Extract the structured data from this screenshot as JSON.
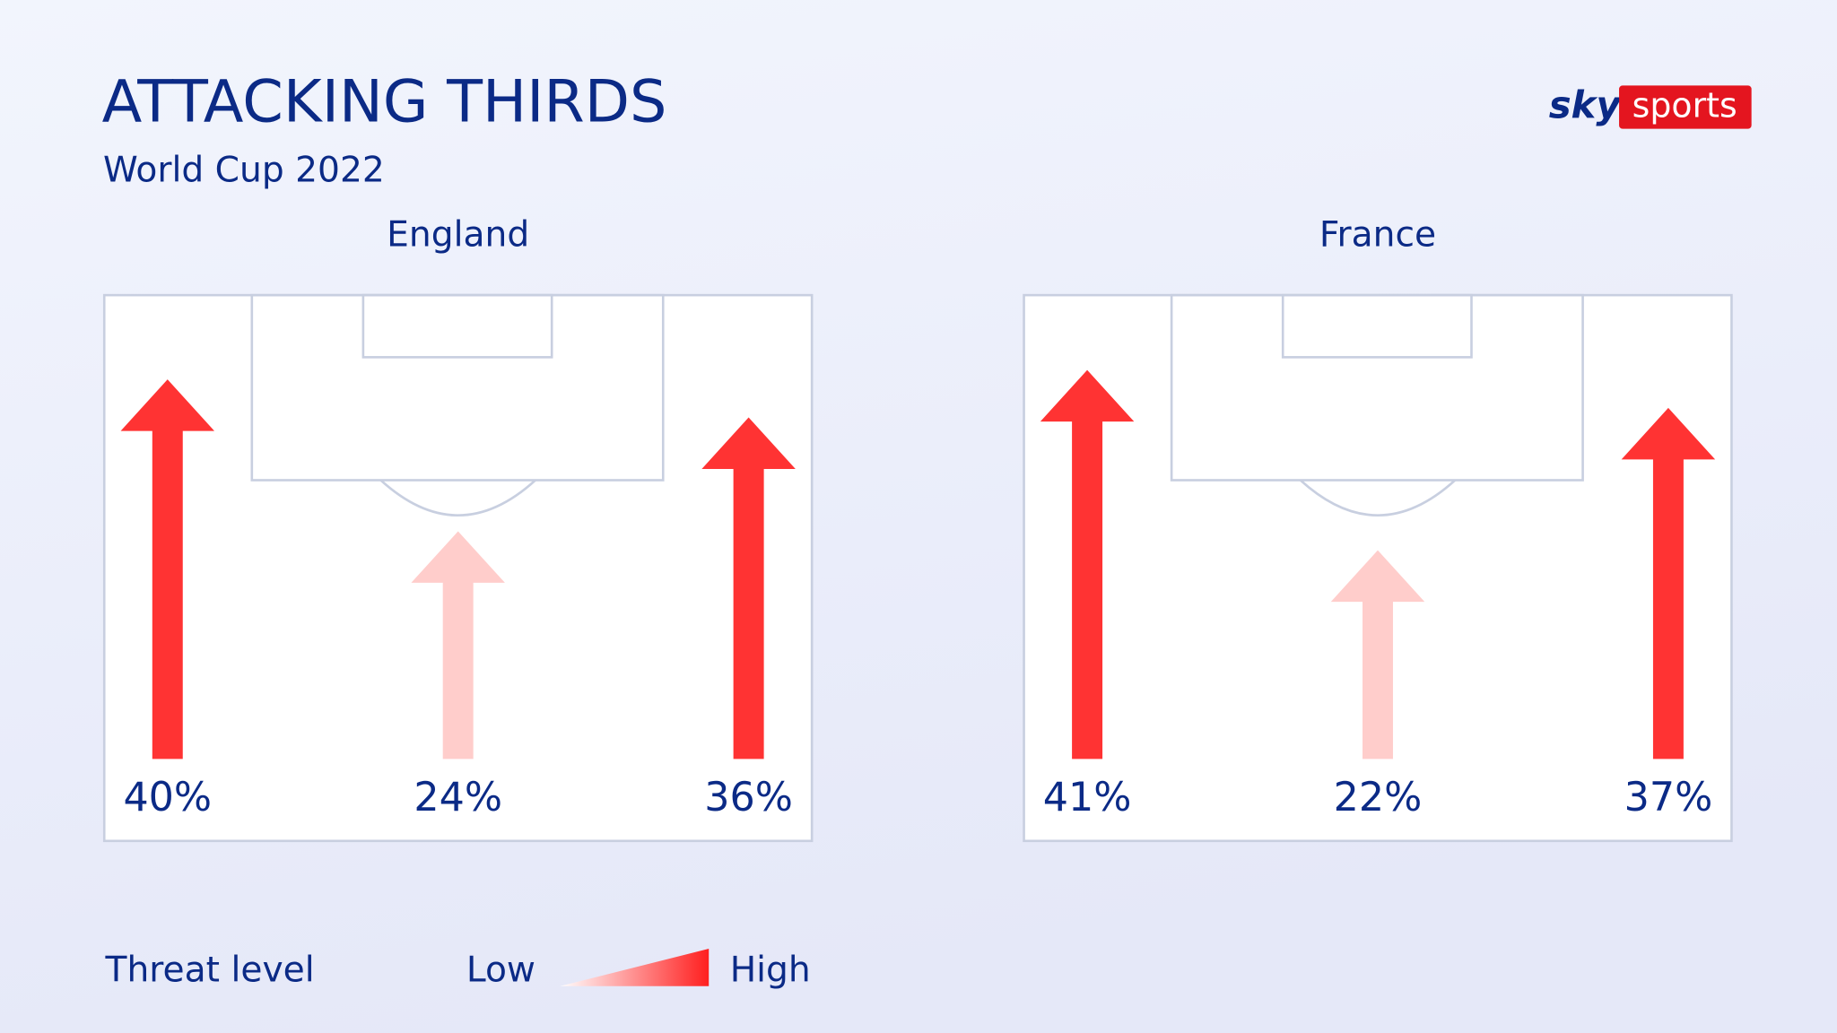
{
  "title": "ATTACKING THIRDS",
  "subtitle": "World Cup 2022",
  "logo": {
    "sky": "sky",
    "sports": "sports"
  },
  "chart_data": [
    {
      "type": "arrow",
      "title": "England",
      "values": [
        40,
        24,
        36
      ],
      "value_labels": [
        "40%",
        "24%",
        "36%"
      ],
      "colors": [
        "#ff3333",
        "#ffcdcb",
        "#ff3333"
      ]
    },
    {
      "type": "arrow",
      "title": "France",
      "values": [
        41,
        22,
        37
      ],
      "value_labels": [
        "41%",
        "22%",
        "37%"
      ],
      "colors": [
        "#ff3333",
        "#ffcdcb",
        "#ff3333"
      ]
    }
  ],
  "legend": {
    "title": "Threat level",
    "low": "Low",
    "high": "High",
    "low_color": "#ffffff",
    "high_color": "#ff1f1f"
  }
}
